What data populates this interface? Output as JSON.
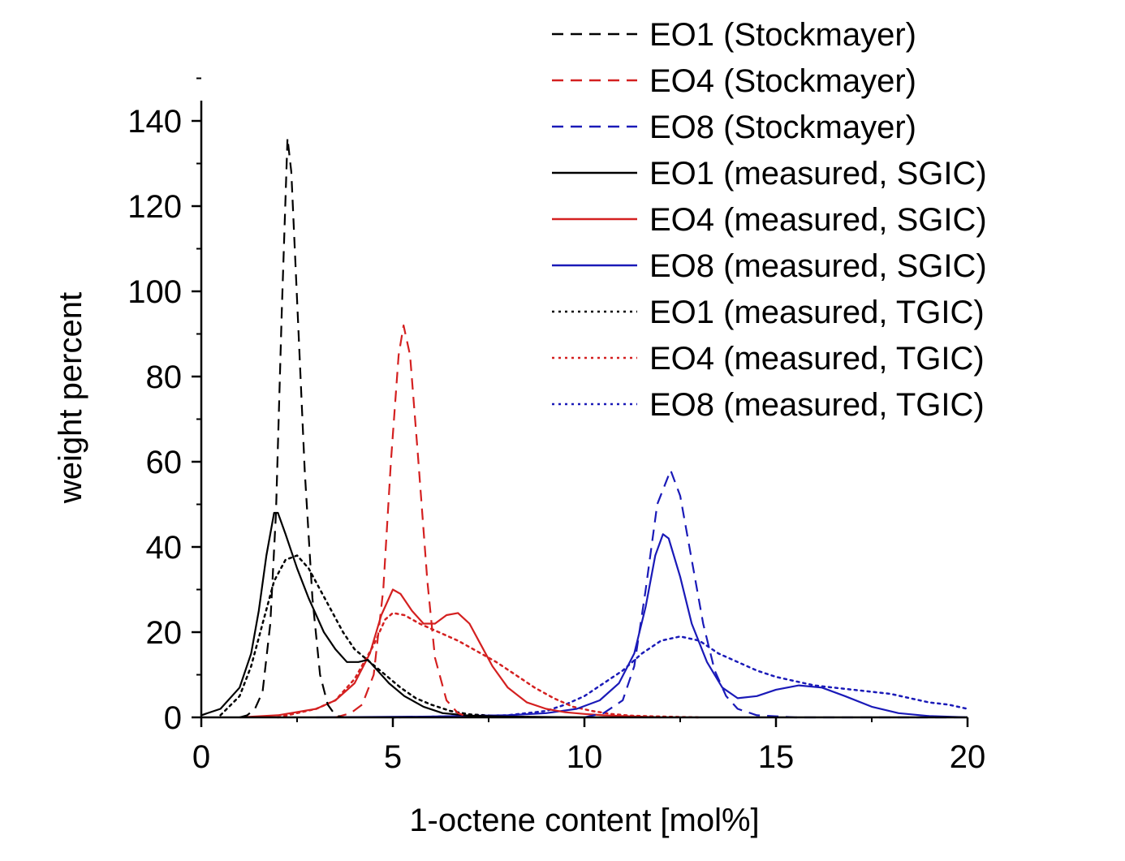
{
  "chart_data": {
    "type": "line",
    "xlabel": "1-octene content [mol%]",
    "ylabel": "weight percent",
    "xlim": [
      0,
      20
    ],
    "ylim": [
      0,
      140
    ],
    "x_ticks": [
      0,
      5,
      10,
      15,
      20
    ],
    "y_ticks": [
      0,
      20,
      40,
      60,
      80,
      100,
      120,
      140
    ],
    "grid": false,
    "legend_position": "top-right",
    "colors": {
      "black": "#000000",
      "red": "#d42020",
      "blue": "#1a1ab8"
    },
    "series": [
      {
        "name": "EO1 (Stockmayer)",
        "color": "#000000",
        "style": "dashed",
        "points": [
          [
            1.0,
            0
          ],
          [
            1.2,
            0.5
          ],
          [
            1.4,
            2
          ],
          [
            1.6,
            6
          ],
          [
            1.8,
            22
          ],
          [
            1.95,
            48
          ],
          [
            2.1,
            95
          ],
          [
            2.25,
            136
          ],
          [
            2.35,
            128
          ],
          [
            2.5,
            98
          ],
          [
            2.7,
            58
          ],
          [
            2.9,
            28
          ],
          [
            3.1,
            10
          ],
          [
            3.3,
            3
          ],
          [
            3.5,
            0.5
          ],
          [
            3.7,
            0
          ]
        ]
      },
      {
        "name": "EO4 (Stockmayer)",
        "color": "#d42020",
        "style": "dashed",
        "points": [
          [
            3.5,
            0
          ],
          [
            3.9,
            1
          ],
          [
            4.2,
            3
          ],
          [
            4.5,
            10
          ],
          [
            4.75,
            30
          ],
          [
            4.95,
            60
          ],
          [
            5.15,
            85
          ],
          [
            5.28,
            92
          ],
          [
            5.45,
            85
          ],
          [
            5.65,
            62
          ],
          [
            5.9,
            32
          ],
          [
            6.1,
            14
          ],
          [
            6.4,
            4
          ],
          [
            6.7,
            1
          ],
          [
            7.0,
            0
          ]
        ]
      },
      {
        "name": "EO8 (Stockmayer)",
        "color": "#1a1ab8",
        "style": "dashed",
        "points": [
          [
            10.0,
            0
          ],
          [
            10.5,
            1
          ],
          [
            11.0,
            4
          ],
          [
            11.3,
            12
          ],
          [
            11.6,
            30
          ],
          [
            11.9,
            50
          ],
          [
            12.25,
            58
          ],
          [
            12.5,
            52
          ],
          [
            12.8,
            37
          ],
          [
            13.1,
            22
          ],
          [
            13.4,
            11
          ],
          [
            13.7,
            5
          ],
          [
            14.0,
            2
          ],
          [
            14.5,
            0.5
          ],
          [
            15.5,
            0
          ],
          [
            20.0,
            0
          ]
        ]
      },
      {
        "name": "EO1 (measured, SGIC)",
        "color": "#000000",
        "style": "solid",
        "points": [
          [
            0,
            0.5
          ],
          [
            0.5,
            2
          ],
          [
            1.0,
            7
          ],
          [
            1.3,
            15
          ],
          [
            1.5,
            25
          ],
          [
            1.7,
            38
          ],
          [
            1.9,
            48
          ],
          [
            2.0,
            48
          ],
          [
            2.2,
            43
          ],
          [
            2.5,
            35
          ],
          [
            2.8,
            28
          ],
          [
            3.2,
            20
          ],
          [
            3.5,
            16
          ],
          [
            3.8,
            13
          ],
          [
            4.1,
            13
          ],
          [
            4.35,
            13.5
          ],
          [
            4.6,
            11
          ],
          [
            4.9,
            8
          ],
          [
            5.3,
            5
          ],
          [
            5.8,
            2.5
          ],
          [
            6.3,
            1
          ],
          [
            7.0,
            0.4
          ],
          [
            8.0,
            0.2
          ],
          [
            10.0,
            0
          ]
        ]
      },
      {
        "name": "EO4 (measured, SGIC)",
        "color": "#d42020",
        "style": "solid",
        "points": [
          [
            1.0,
            0
          ],
          [
            2.0,
            0.5
          ],
          [
            3.0,
            2
          ],
          [
            3.5,
            4
          ],
          [
            4.0,
            8
          ],
          [
            4.4,
            15
          ],
          [
            4.7,
            24
          ],
          [
            5.0,
            30
          ],
          [
            5.2,
            29
          ],
          [
            5.5,
            25
          ],
          [
            5.8,
            22
          ],
          [
            6.1,
            22
          ],
          [
            6.4,
            24
          ],
          [
            6.7,
            24.5
          ],
          [
            7.0,
            22
          ],
          [
            7.3,
            17
          ],
          [
            7.6,
            12
          ],
          [
            8.0,
            7
          ],
          [
            8.5,
            3.5
          ],
          [
            9.0,
            2
          ],
          [
            9.5,
            1.2
          ],
          [
            10.0,
            0.8
          ],
          [
            10.5,
            0.5
          ],
          [
            11.0,
            0.3
          ],
          [
            12.0,
            0
          ]
        ]
      },
      {
        "name": "EO8 (measured, SGIC)",
        "color": "#1a1ab8",
        "style": "solid",
        "points": [
          [
            3.0,
            0
          ],
          [
            6.0,
            0.2
          ],
          [
            8.0,
            0.5
          ],
          [
            9.0,
            1
          ],
          [
            9.8,
            2
          ],
          [
            10.4,
            4
          ],
          [
            10.9,
            8
          ],
          [
            11.3,
            15
          ],
          [
            11.6,
            26
          ],
          [
            11.85,
            38
          ],
          [
            12.05,
            43
          ],
          [
            12.2,
            42
          ],
          [
            12.5,
            33
          ],
          [
            12.8,
            22
          ],
          [
            13.2,
            13
          ],
          [
            13.6,
            7
          ],
          [
            14.0,
            4.5
          ],
          [
            14.5,
            5
          ],
          [
            15.0,
            6.5
          ],
          [
            15.6,
            7.5
          ],
          [
            16.2,
            7
          ],
          [
            16.8,
            5
          ],
          [
            17.5,
            2.5
          ],
          [
            18.2,
            1
          ],
          [
            19.0,
            0.3
          ],
          [
            20.0,
            0
          ]
        ]
      },
      {
        "name": "EO1 (measured, TGIC)",
        "color": "#000000",
        "style": "dotted",
        "points": [
          [
            0.5,
            0.5
          ],
          [
            1.0,
            5
          ],
          [
            1.3,
            12
          ],
          [
            1.6,
            22
          ],
          [
            1.9,
            32
          ],
          [
            2.2,
            37
          ],
          [
            2.5,
            38
          ],
          [
            2.8,
            35
          ],
          [
            3.1,
            30
          ],
          [
            3.4,
            25
          ],
          [
            3.7,
            20
          ],
          [
            4.0,
            16
          ],
          [
            4.4,
            13
          ],
          [
            4.8,
            10
          ],
          [
            5.2,
            7
          ],
          [
            5.6,
            4.5
          ],
          [
            6.0,
            3
          ],
          [
            6.5,
            1.5
          ],
          [
            7.0,
            0.7
          ],
          [
            8.0,
            0.2
          ],
          [
            9.0,
            0
          ]
        ]
      },
      {
        "name": "EO4 (measured, TGIC)",
        "color": "#d42020",
        "style": "dotted",
        "points": [
          [
            2.0,
            0
          ],
          [
            3.0,
            2
          ],
          [
            3.5,
            4
          ],
          [
            4.0,
            9
          ],
          [
            4.5,
            17
          ],
          [
            4.8,
            23
          ],
          [
            5.0,
            24.5
          ],
          [
            5.3,
            24
          ],
          [
            5.7,
            22
          ],
          [
            6.2,
            20
          ],
          [
            6.7,
            18
          ],
          [
            7.2,
            15.5
          ],
          [
            7.7,
            13
          ],
          [
            8.2,
            10
          ],
          [
            8.7,
            7
          ],
          [
            9.2,
            4.5
          ],
          [
            9.7,
            2.5
          ],
          [
            10.2,
            1.5
          ],
          [
            10.7,
            0.8
          ],
          [
            11.2,
            0.4
          ],
          [
            12.0,
            0.2
          ],
          [
            13.0,
            0
          ]
        ]
      },
      {
        "name": "EO8 (measured, TGIC)",
        "color": "#1a1ab8",
        "style": "dotted",
        "points": [
          [
            5.0,
            0
          ],
          [
            8.0,
            0.5
          ],
          [
            9.0,
            1.5
          ],
          [
            9.5,
            3
          ],
          [
            10.0,
            5
          ],
          [
            10.5,
            8
          ],
          [
            11.0,
            11
          ],
          [
            11.5,
            15
          ],
          [
            12.0,
            18
          ],
          [
            12.5,
            19
          ],
          [
            13.0,
            18
          ],
          [
            13.5,
            15
          ],
          [
            14.0,
            13
          ],
          [
            14.5,
            11
          ],
          [
            15.0,
            9.5
          ],
          [
            15.5,
            8.5
          ],
          [
            16.0,
            7.5
          ],
          [
            16.5,
            7
          ],
          [
            17.0,
            6.5
          ],
          [
            17.5,
            6
          ],
          [
            18.0,
            5.5
          ],
          [
            18.5,
            4.5
          ],
          [
            19.0,
            3.5
          ],
          [
            19.5,
            3
          ],
          [
            20.0,
            2
          ]
        ]
      }
    ]
  }
}
